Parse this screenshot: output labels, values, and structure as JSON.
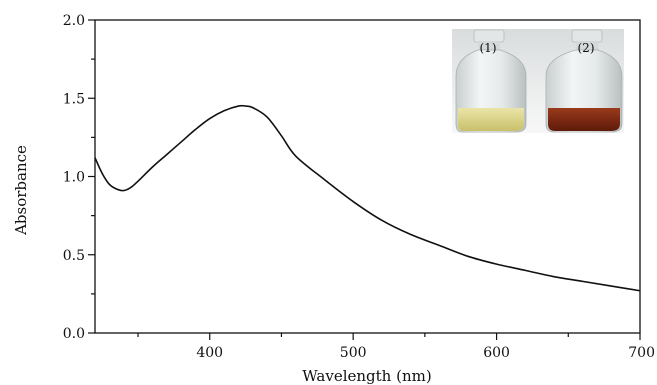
{
  "chart_data": {
    "type": "line",
    "xlabel": "Wavelength (nm)",
    "ylabel": "Absorbance",
    "xlim": [
      320,
      700
    ],
    "ylim": [
      0.0,
      2.0
    ],
    "x_ticks": [
      400,
      500,
      600,
      700
    ],
    "x_tick_labels": [
      "400",
      "500",
      "600",
      "700"
    ],
    "y_ticks": [
      0.0,
      0.5,
      1.0,
      1.5,
      2.0
    ],
    "y_tick_labels": [
      "0.0",
      "0.5",
      "1.0",
      "1.5",
      "2.0"
    ],
    "grid": false,
    "series": [
      {
        "x": [
          320,
          325,
          330,
          335,
          340,
          345,
          350,
          360,
          370,
          380,
          390,
          400,
          410,
          420,
          425,
          430,
          440,
          450,
          460,
          480,
          500,
          520,
          540,
          560,
          580,
          600,
          620,
          640,
          660,
          680,
          700
        ],
        "y": [
          1.12,
          1.02,
          0.95,
          0.92,
          0.91,
          0.93,
          0.97,
          1.06,
          1.14,
          1.22,
          1.3,
          1.37,
          1.42,
          1.45,
          1.45,
          1.44,
          1.38,
          1.26,
          1.13,
          0.98,
          0.84,
          0.72,
          0.63,
          0.56,
          0.49,
          0.44,
          0.4,
          0.36,
          0.33,
          0.3,
          0.27
        ],
        "color": "#111111"
      }
    ],
    "inset": {
      "vial_labels": [
        "(1)",
        "(2)"
      ]
    }
  }
}
